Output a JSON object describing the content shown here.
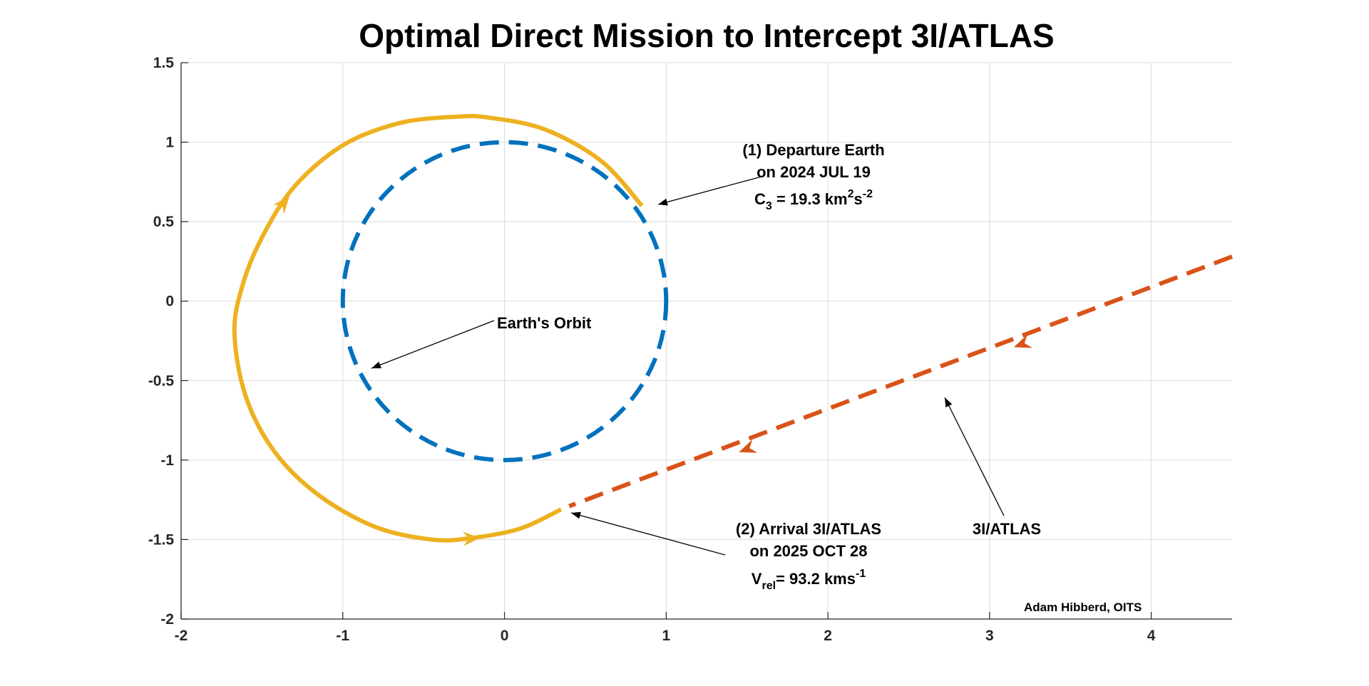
{
  "chart_data": {
    "type": "line",
    "title": "Optimal Direct Mission to Intercept 3I/ATLAS",
    "xlabel": "",
    "ylabel": "",
    "xlim": [
      -2,
      4.5
    ],
    "ylim": [
      -2,
      1.5
    ],
    "x_ticks": [
      -2,
      -1,
      0,
      1,
      2,
      3,
      4
    ],
    "y_ticks": [
      -2,
      -1.5,
      -1,
      -0.5,
      0,
      0.5,
      1,
      1.5
    ],
    "x_tick_labels": [
      "-2",
      "-1",
      "0",
      "1",
      "2",
      "3",
      "4"
    ],
    "y_tick_labels": [
      "-2",
      "-1.5",
      "-1",
      "-0.5",
      "0",
      "0.5",
      "1",
      "1.5"
    ],
    "grid": true,
    "series": [
      {
        "color": "#0072BD",
        "style": "dashed",
        "x": [
          1.0,
          0.866,
          0.5,
          0.0,
          -0.5,
          -0.866,
          -1.0,
          -0.866,
          -0.5,
          0.0,
          0.5,
          0.866,
          1.0
        ],
        "y": [
          0.0,
          0.5,
          0.866,
          1.0,
          0.866,
          0.5,
          0.0,
          -0.5,
          -0.866,
          -1.0,
          -0.866,
          -0.5,
          0.0
        ]
      },
      {
        "color": "#EDB120",
        "style": "solid",
        "x": [
          0.85,
          0.6,
          0.25,
          -0.1,
          -0.3,
          -0.65,
          -1.0,
          -1.3,
          -1.5,
          -1.62,
          -1.67,
          -1.6,
          -1.42,
          -1.15,
          -0.8,
          -0.45,
          -0.2,
          0.1,
          0.35
        ],
        "y": [
          0.6,
          0.88,
          1.08,
          1.155,
          1.16,
          1.12,
          0.98,
          0.72,
          0.4,
          0.1,
          -0.2,
          -0.6,
          -0.95,
          -1.22,
          -1.42,
          -1.5,
          -1.49,
          -1.43,
          -1.31
        ]
      },
      {
        "color": "#D95319",
        "style": "dashed",
        "x": [
          4.5,
          0.4
        ],
        "y": [
          0.28,
          -1.29
        ]
      }
    ],
    "annotations": [
      {
        "lines": [
          "(1) Departure Earth",
          "on 2024 JUL 19"
        ],
        "formula": {
          "a": "C",
          "a_sub": "3",
          "b": " = 19.3 km",
          "b_sup": "2",
          "c": "s",
          "c_sup": "-2"
        }
      },
      {
        "lines": [
          "Earth's Orbit"
        ]
      },
      {
        "lines": [
          "(2) Arrival 3I/ATLAS",
          "on 2025 OCT 28"
        ],
        "formula": {
          "a": "V",
          "a_sub": "rel",
          "b": "= 93.2 kms",
          "b_sup": "-1"
        }
      },
      {
        "lines": [
          "3I/ATLAS"
        ]
      },
      {
        "lines": [
          "Adam Hibberd, OITS"
        ]
      }
    ]
  }
}
